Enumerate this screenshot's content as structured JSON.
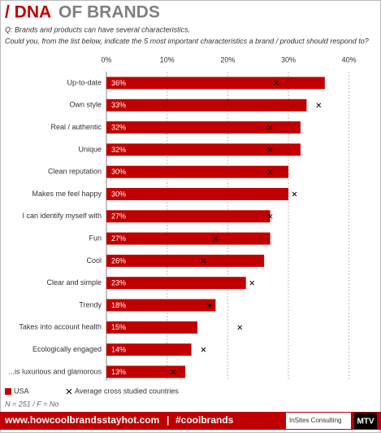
{
  "chart_data": {
    "type": "bar",
    "orientation": "horizontal",
    "title": {
      "accent": "/ DNA",
      "rest": "OF BRANDS"
    },
    "subtitle": [
      "Q: Brands and products can have several characteristics.",
      "Could you, from the list below, indicate the 5 most important characteristics a brand / product should respond to?"
    ],
    "categories": [
      "Up-to-date",
      "Own style",
      "Real / authentic",
      "Unique",
      "Clean reputation",
      "Makes me feel happy",
      "I can identify myself with",
      "Fun",
      "Cool",
      "Clear and simple",
      "Trendy",
      "Takes into account health",
      "Ecologically engaged",
      "...is luxurious and glamorous"
    ],
    "series": [
      {
        "name": "USA",
        "color": "#c00000",
        "values": [
          36,
          33,
          32,
          32,
          30,
          30,
          27,
          27,
          26,
          23,
          18,
          15,
          14,
          13
        ],
        "value_labels": [
          "36%",
          "33%",
          "32%",
          "32%",
          "30%",
          "30%",
          "27%",
          "27%",
          "26%",
          "23%",
          "18%",
          "15%",
          "14%",
          "13%"
        ]
      },
      {
        "name": "Average cross studied countries",
        "color": "#000000",
        "marker": "x",
        "values": [
          28,
          35,
          27,
          27,
          27,
          31,
          27,
          18,
          16,
          24,
          17,
          22,
          16,
          11
        ]
      }
    ],
    "xlim": [
      0,
      45
    ],
    "xticks": [
      {
        "value": 0,
        "label": "0%"
      },
      {
        "value": 10,
        "label": "10%"
      },
      {
        "value": 20,
        "label": "20%"
      },
      {
        "value": 30,
        "label": "30%"
      },
      {
        "value": 40,
        "label": "40%"
      }
    ],
    "grid": true,
    "legend": "bottom-left",
    "footnote": "N = 251 / F = No"
  },
  "footer": {
    "url": "www.howcoolbrandsstayhot.com",
    "separator": "|",
    "hashtag": "#coolbrands",
    "company": "InSites Consulting",
    "logo": "MTV"
  }
}
